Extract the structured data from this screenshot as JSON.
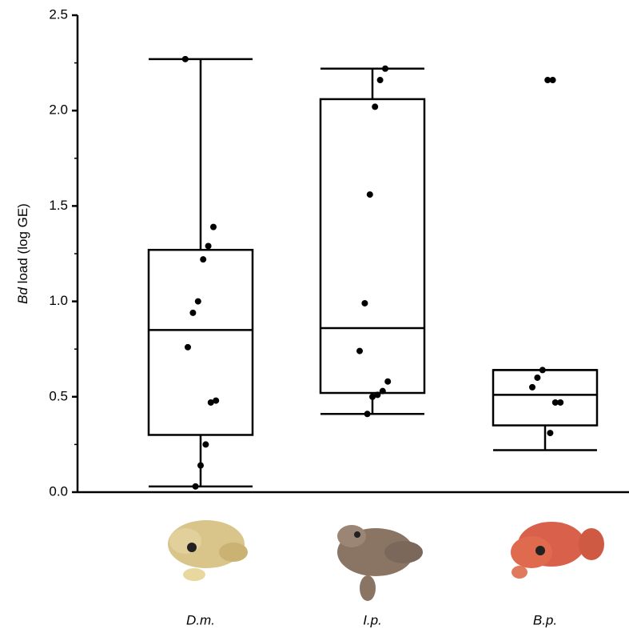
{
  "chart_data": {
    "type": "box",
    "ylabel": {
      "italic": "Bd",
      "text": "load (log GE)"
    },
    "categories": [
      "D.m.",
      "I.p.",
      "B.p."
    ],
    "boxes": [
      {
        "whislo": 0.03,
        "q1": 0.3,
        "med": 0.85,
        "q3": 1.27,
        "whishi": 2.27
      },
      {
        "whislo": 0.41,
        "q1": 0.52,
        "med": 0.86,
        "q3": 2.06,
        "whishi": 2.22
      },
      {
        "whislo": 0.22,
        "q1": 0.35,
        "med": 0.51,
        "q3": 0.64,
        "whishi": 0.64
      }
    ],
    "points": [
      [
        2.27,
        1.39,
        1.29,
        1.22,
        1.0,
        0.94,
        0.76,
        0.48,
        0.47,
        0.25,
        0.14,
        0.03
      ],
      [
        2.22,
        2.16,
        2.02,
        1.56,
        0.99,
        0.74,
        0.58,
        0.53,
        0.51,
        0.5,
        0.41
      ],
      [
        2.16,
        2.16,
        0.64,
        0.6,
        0.55,
        0.47,
        0.47,
        0.31
      ]
    ],
    "color": "#000000",
    "ylim": [
      0,
      2.5
    ],
    "yticks": [
      {
        "value": 0,
        "label": "0.0"
      },
      0.5,
      {
        "value": 1,
        "label": "1.0"
      },
      1.5,
      {
        "value": 2,
        "label": "2.0"
      },
      2.5
    ],
    "minor_yticks": [
      0.25,
      0.75,
      1.25,
      1.75,
      2.25
    ]
  }
}
